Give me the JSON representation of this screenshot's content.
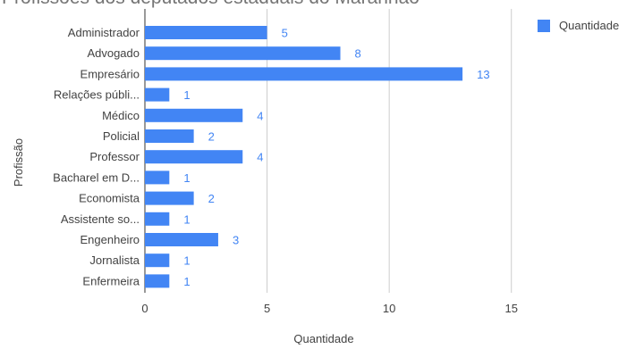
{
  "chart_data": {
    "type": "bar",
    "orientation": "horizontal",
    "title": "Profissões dos deputados estaduais do Maranhão",
    "xlabel": "Quantidade",
    "ylabel": "Profissão",
    "categories": [
      "Administrador",
      "Advogado",
      "Empresário",
      "Relações públi...",
      "Médico",
      "Policial",
      "Professor",
      "Bacharel em D...",
      "Economista",
      "Assistente so...",
      "Engenheiro",
      "Jornalista",
      "Enfermeira"
    ],
    "series": [
      {
        "name": "Quantidade",
        "color": "#4285f4",
        "values": [
          5,
          8,
          13,
          1,
          4,
          2,
          4,
          1,
          2,
          1,
          3,
          1,
          1
        ]
      }
    ],
    "x_ticks": [
      "0",
      "5",
      "10",
      "15"
    ],
    "xlim": [
      0,
      19
    ],
    "grid": true,
    "data_labels": true,
    "legend_position": "top-right",
    "colors": {
      "bar": "#4285f4",
      "data_label": "#4285f4",
      "axis_text": "#424242",
      "gridline": "#cccccc",
      "title": "#757575"
    }
  }
}
